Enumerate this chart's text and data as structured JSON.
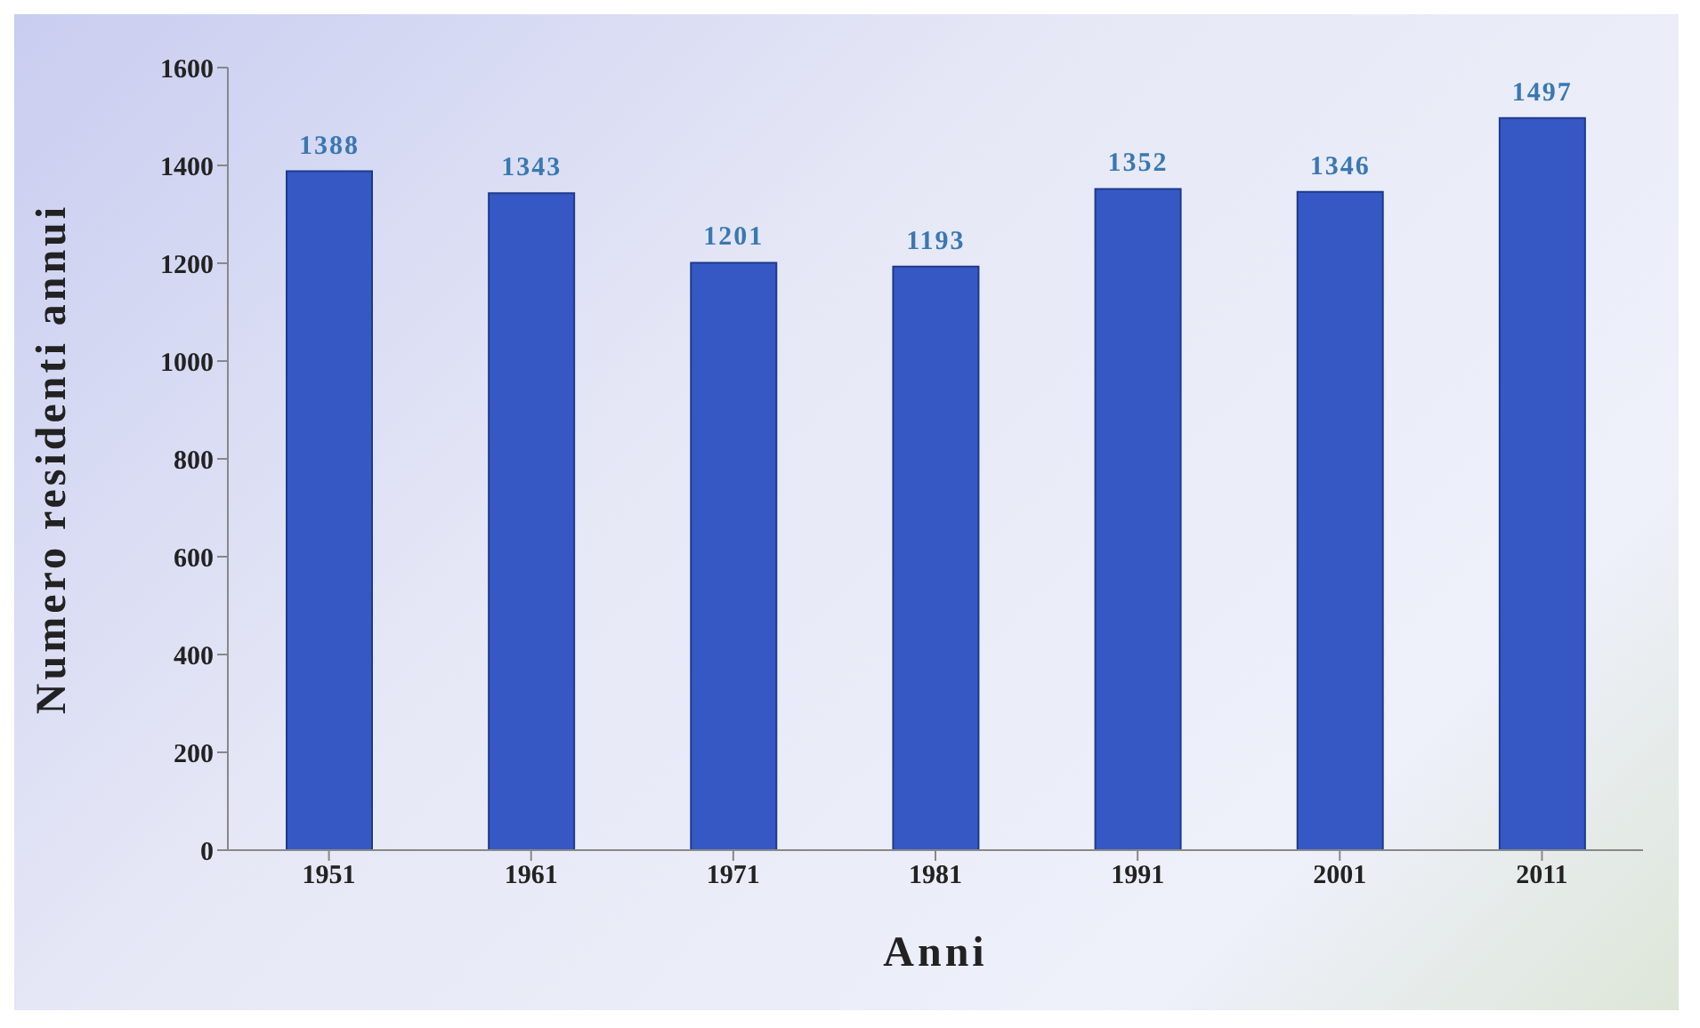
{
  "chart_data": {
    "type": "bar",
    "xlabel": "Anni",
    "ylabel": "Numero residenti annui",
    "categories": [
      "1951",
      "1961",
      "1971",
      "1981",
      "1991",
      "2001",
      "2011"
    ],
    "values": [
      1388,
      1343,
      1201,
      1193,
      1352,
      1346,
      1497
    ],
    "color": "#3558c4",
    "ylim": [
      0,
      1600
    ],
    "yticks": [
      0,
      200,
      400,
      600,
      800,
      1000,
      1200,
      1400,
      1600
    ],
    "data_labels": true,
    "grid": false,
    "legend": false
  }
}
